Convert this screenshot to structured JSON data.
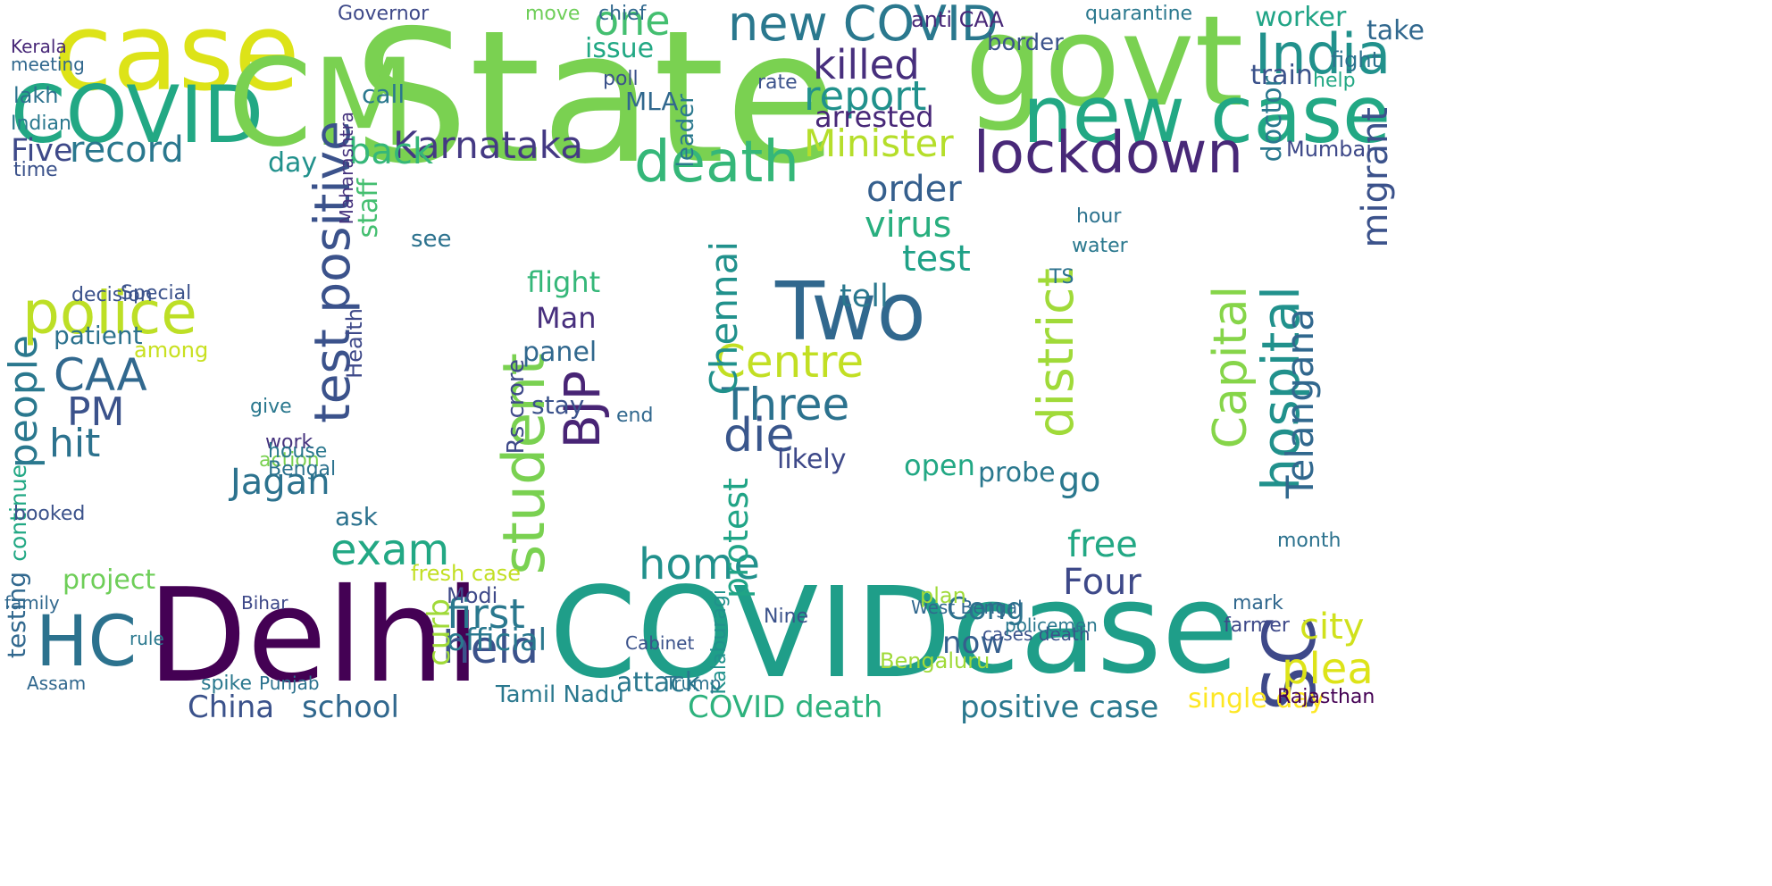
{
  "wordcloud": {
    "words": [
      {
        "text": "State",
        "color": "#7ad151"
      },
      {
        "text": "govt",
        "color": "#7ad151"
      },
      {
        "text": "case",
        "color": "#dde318"
      },
      {
        "text": "COVID",
        "color": "#22a884"
      },
      {
        "text": "CM",
        "color": "#7ad151"
      },
      {
        "text": "Delhi",
        "color": "#440154"
      },
      {
        "text": "COVID",
        "color": "#1f9e89"
      },
      {
        "text": "case",
        "color": "#1f9e89"
      },
      {
        "text": "new case",
        "color": "#22a884"
      },
      {
        "text": "new COVID",
        "color": "#2a788e"
      },
      {
        "text": "India",
        "color": "#21918c"
      },
      {
        "text": "lockdown",
        "color": "#482878"
      },
      {
        "text": "Two",
        "color": "#31688e"
      },
      {
        "text": "test positive",
        "color": "#3b528b"
      },
      {
        "text": "police",
        "color": "#bddf26"
      },
      {
        "text": "HC",
        "color": "#2c728e"
      },
      {
        "text": "SC",
        "color": "#3e4989"
      },
      {
        "text": "death",
        "color": "#35b779"
      },
      {
        "text": "Karnataka",
        "color": "#443983"
      },
      {
        "text": "Minister",
        "color": "#b5de2b"
      },
      {
        "text": "killed",
        "color": "#472f7d"
      },
      {
        "text": "report",
        "color": "#21918c"
      },
      {
        "text": "Five",
        "color": "#3e4989"
      },
      {
        "text": "record",
        "color": "#2a788e"
      },
      {
        "text": "Centre",
        "color": "#c2df23"
      },
      {
        "text": "Three",
        "color": "#2c728e"
      },
      {
        "text": "die",
        "color": "#39568c"
      },
      {
        "text": "student",
        "color": "#7ad151"
      },
      {
        "text": "BJP",
        "color": "#482475"
      },
      {
        "text": "CAA",
        "color": "#31688e"
      },
      {
        "text": "people",
        "color": "#2a788e"
      },
      {
        "text": "PM",
        "color": "#3b528b"
      },
      {
        "text": "hit",
        "color": "#2c728e"
      },
      {
        "text": "district",
        "color": "#a0da39"
      },
      {
        "text": "hospital",
        "color": "#21918c"
      },
      {
        "text": "Capital",
        "color": "#86d549"
      },
      {
        "text": "Telangana",
        "color": "#31688e"
      },
      {
        "text": "held",
        "color": "#3b528b"
      },
      {
        "text": "first",
        "color": "#2a788e"
      },
      {
        "text": "home",
        "color": "#21918c"
      },
      {
        "text": "exam",
        "color": "#22a884"
      },
      {
        "text": "Jagan",
        "color": "#2c728e"
      },
      {
        "text": "order",
        "color": "#355f8d"
      },
      {
        "text": "virus",
        "color": "#29af7f"
      },
      {
        "text": "test",
        "color": "#1fa187"
      },
      {
        "text": "back",
        "color": "#35b779"
      },
      {
        "text": "one",
        "color": "#44bf70"
      },
      {
        "text": "plea",
        "color": "#dde318"
      },
      {
        "text": "city",
        "color": "#d0e11c"
      },
      {
        "text": "Four",
        "color": "#3e4989"
      },
      {
        "text": "free",
        "color": "#22a884"
      },
      {
        "text": "Chennai",
        "color": "#21918c"
      },
      {
        "text": "protest",
        "color": "#20a486"
      },
      {
        "text": "official",
        "color": "#2a788e"
      },
      {
        "text": "school",
        "color": "#31688e"
      },
      {
        "text": "China",
        "color": "#3b528b"
      },
      {
        "text": "COVID death",
        "color": "#2db27d"
      },
      {
        "text": "positive case",
        "color": "#2a788e"
      },
      {
        "text": "curb",
        "color": "#a0da39"
      },
      {
        "text": "Modi",
        "color": "#3e4989"
      },
      {
        "text": "Cong",
        "color": "#2c728e"
      },
      {
        "text": "now",
        "color": "#355f8d"
      },
      {
        "text": "migrant",
        "color": "#3b528b"
      },
      {
        "text": "worker",
        "color": "#20a486"
      },
      {
        "text": "Mumbai",
        "color": "#3e4989"
      },
      {
        "text": "tell",
        "color": "#2a788e"
      },
      {
        "text": "Man",
        "color": "#472f7d"
      },
      {
        "text": "flight",
        "color": "#35b779"
      },
      {
        "text": "panel",
        "color": "#31688e"
      },
      {
        "text": "staff",
        "color": "#44bf70"
      },
      {
        "text": "go",
        "color": "#2a788e"
      },
      {
        "text": "open",
        "color": "#22a884"
      },
      {
        "text": "project",
        "color": "#6ece58"
      },
      {
        "text": "testing",
        "color": "#31688e"
      },
      {
        "text": "attack",
        "color": "#2a788e"
      },
      {
        "text": "Bengaluru",
        "color": "#a0da39"
      },
      {
        "text": "single day",
        "color": "#fde725"
      },
      {
        "text": "Rajasthan",
        "color": "#440154"
      },
      {
        "text": "Kalaburagi",
        "color": "#21918c"
      },
      {
        "text": "probe",
        "color": "#2a788e"
      },
      {
        "text": "patient",
        "color": "#2c728e"
      },
      {
        "text": "among",
        "color": "#c8e020"
      },
      {
        "text": "continue",
        "color": "#22a884"
      },
      {
        "text": "Health",
        "color": "#3e4989"
      },
      {
        "text": "train",
        "color": "#3b528b"
      },
      {
        "text": "doctor",
        "color": "#2a788e"
      },
      {
        "text": "arrested",
        "color": "#482878"
      },
      {
        "text": "likely",
        "color": "#3e4989"
      },
      {
        "text": "ask",
        "color": "#2c728e"
      },
      {
        "text": "day",
        "color": "#21918c"
      },
      {
        "text": "call",
        "color": "#2a788e"
      },
      {
        "text": "stay",
        "color": "#3b528b"
      },
      {
        "text": "Rs crore",
        "color": "#3e4989"
      },
      {
        "text": "see",
        "color": "#2c728e"
      },
      {
        "text": "issue",
        "color": "#22a884"
      },
      {
        "text": "MLA",
        "color": "#31688e"
      },
      {
        "text": "leader",
        "color": "#2a788e"
      },
      {
        "text": "Maharashtra",
        "color": "#46337e"
      },
      {
        "text": "Kerala",
        "color": "#482878"
      },
      {
        "text": "meeting",
        "color": "#31688e"
      },
      {
        "text": "lakh",
        "color": "#2c728e"
      },
      {
        "text": "Indian",
        "color": "#2a788e"
      },
      {
        "text": "time",
        "color": "#3b528b"
      },
      {
        "text": "border",
        "color": "#3b528b"
      },
      {
        "text": "take",
        "color": "#31688e"
      },
      {
        "text": "fight",
        "color": "#2c728e"
      },
      {
        "text": "help",
        "color": "#22a884"
      },
      {
        "text": "work",
        "color": "#46337e"
      },
      {
        "text": "action",
        "color": "#7ad151"
      },
      {
        "text": "give",
        "color": "#2a788e"
      },
      {
        "text": "booked",
        "color": "#3b528b"
      },
      {
        "text": "Assam",
        "color": "#31688e"
      },
      {
        "text": "spike",
        "color": "#2a788e"
      },
      {
        "text": "Punjab",
        "color": "#2c728e"
      },
      {
        "text": "Tamil Nadu",
        "color": "#2a788e"
      },
      {
        "text": "Trump",
        "color": "#2c728e"
      },
      {
        "text": "Cabinet",
        "color": "#3b528b"
      },
      {
        "text": "fresh case",
        "color": "#c2df23"
      },
      {
        "text": "anti CAA",
        "color": "#482878"
      },
      {
        "text": "quarantine",
        "color": "#2a788e"
      },
      {
        "text": "Governor",
        "color": "#3e4989"
      },
      {
        "text": "move",
        "color": "#6ece58"
      },
      {
        "text": "chief",
        "color": "#31688e"
      },
      {
        "text": "rate",
        "color": "#3b528b"
      },
      {
        "text": "hour",
        "color": "#2c728e"
      },
      {
        "text": "water",
        "color": "#2a788e"
      },
      {
        "text": "TS",
        "color": "#2c728e"
      },
      {
        "text": "Special",
        "color": "#3b528b"
      },
      {
        "text": "decision",
        "color": "#3b528b"
      },
      {
        "text": "house",
        "color": "#2a788e"
      },
      {
        "text": "end",
        "color": "#31688e"
      },
      {
        "text": "Bengal",
        "color": "#2c728e"
      },
      {
        "text": "poll",
        "color": "#3b528b"
      },
      {
        "text": "West Bengal",
        "color": "#31688e"
      },
      {
        "text": "plan",
        "color": "#a0da39"
      },
      {
        "text": "cases death",
        "color": "#3b528b"
      },
      {
        "text": "policemen",
        "color": "#2a788e"
      },
      {
        "text": "farmer",
        "color": "#3e4989"
      },
      {
        "text": "mark",
        "color": "#31688e"
      },
      {
        "text": "month",
        "color": "#2c728e"
      },
      {
        "text": "Nine",
        "color": "#3b528b"
      },
      {
        "text": "Bihar",
        "color": "#3e4989"
      },
      {
        "text": "rule",
        "color": "#2a788e"
      },
      {
        "text": "family",
        "color": "#31688e"
      }
    ]
  }
}
